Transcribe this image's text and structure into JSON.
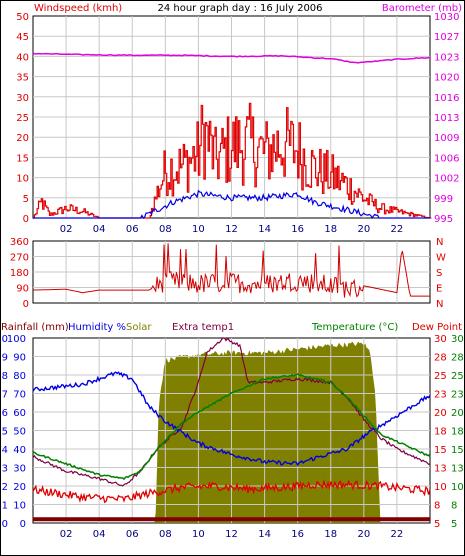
{
  "title": "24 hour graph day : 16 July 2006",
  "colors": {
    "wind": "#e00000",
    "gust": "#e00000",
    "avgwind": "#0000e0",
    "baro": "#e000e0",
    "dir": "#d00000",
    "humidity": "#0000e0",
    "solar": "#808000",
    "extra": "#800040",
    "temp": "#008000",
    "dew": "#e00000",
    "rain": "#800000",
    "dark": "#000000"
  },
  "chart_data": [
    {
      "type": "line",
      "name": "wind-baro",
      "labels": {
        "left": "Windspeed (kmh)",
        "right": "Barometer (mb)"
      },
      "x_ticks": [
        "02",
        "04",
        "06",
        "08",
        "10",
        "12",
        "14",
        "16",
        "18",
        "20",
        "22"
      ],
      "y_left_ticks": [
        "0",
        "5",
        "10",
        "15",
        "20",
        "25",
        "30",
        "35",
        "40",
        "45",
        "50"
      ],
      "y_right_ticks": [
        "995",
        "999",
        "1002",
        "1006",
        "1009",
        "1013",
        "1016",
        "1020",
        "1023",
        "1027",
        "1030"
      ],
      "ylim_left": [
        0,
        50
      ],
      "ylim_right": [
        995,
        1030
      ],
      "xlim": [
        0,
        24
      ],
      "series": {
        "barometer": [
          [
            0,
            1023.5
          ],
          [
            3,
            1023.3
          ],
          [
            6,
            1023.2
          ],
          [
            9,
            1023.2
          ],
          [
            12,
            1023.0
          ],
          [
            15,
            1023.1
          ],
          [
            18,
            1022.6
          ],
          [
            19.5,
            1021.9
          ],
          [
            20.5,
            1022.1
          ],
          [
            22,
            1022.5
          ],
          [
            24,
            1022.8
          ]
        ],
        "gust": [
          [
            0,
            0
          ],
          [
            0.5,
            5
          ],
          [
            1,
            1
          ],
          [
            2,
            3
          ],
          [
            3,
            2
          ],
          [
            4,
            0
          ],
          [
            7,
            0
          ],
          [
            7.5,
            8
          ],
          [
            8,
            15
          ],
          [
            9,
            16
          ],
          [
            10,
            20
          ],
          [
            10.3,
            27
          ],
          [
            11,
            18
          ],
          [
            12,
            22
          ],
          [
            13,
            23
          ],
          [
            14,
            20
          ],
          [
            15,
            23
          ],
          [
            16,
            21
          ],
          [
            17,
            15
          ],
          [
            18,
            13
          ],
          [
            19,
            10
          ],
          [
            20,
            6
          ],
          [
            21,
            3
          ],
          [
            22,
            2
          ],
          [
            23,
            1
          ],
          [
            24,
            0
          ]
        ],
        "average": [
          [
            0,
            0
          ],
          [
            6.5,
            0
          ],
          [
            7.5,
            2
          ],
          [
            8.5,
            4
          ],
          [
            10,
            6
          ],
          [
            12,
            5
          ],
          [
            14,
            5
          ],
          [
            16,
            6
          ],
          [
            17,
            4
          ],
          [
            18,
            3
          ],
          [
            19,
            2
          ],
          [
            20,
            1
          ],
          [
            21,
            0
          ],
          [
            24,
            0
          ]
        ]
      }
    },
    {
      "type": "line",
      "name": "wind-direction",
      "y_left_ticks": [
        "0",
        "90",
        "180",
        "270",
        "360"
      ],
      "y_right_ticks": [
        "N",
        "E",
        "S",
        "W",
        "N"
      ],
      "ylim": [
        0,
        360
      ],
      "series": {
        "direction": [
          [
            0,
            75
          ],
          [
            2,
            80
          ],
          [
            3,
            60
          ],
          [
            4,
            75
          ],
          [
            7,
            75
          ],
          [
            7.5,
            100
          ],
          [
            8,
            130
          ],
          [
            10,
            110
          ],
          [
            12,
            120
          ],
          [
            14,
            110
          ],
          [
            16,
            130
          ],
          [
            18,
            100
          ],
          [
            19.5,
            80
          ],
          [
            20,
            100
          ],
          [
            22,
            60
          ],
          [
            22.3,
            320
          ],
          [
            22.8,
            40
          ],
          [
            24,
            40
          ]
        ]
      }
    },
    {
      "type": "line",
      "name": "temp-humidity",
      "labels": {
        "rain": "Rainfall (mm)",
        "humidity": "Humidity %",
        "solar": "Solar",
        "extra": "Extra temp1",
        "temp": "Temperature (°C)",
        "dew": "Dew Point"
      },
      "y_ticks_rain": [
        "0",
        "1",
        "2",
        "3",
        "4",
        "5",
        "6",
        "7",
        "8",
        "9",
        "10"
      ],
      "y_ticks_hum": [
        "0",
        "10",
        "20",
        "30",
        "40",
        "50",
        "60",
        "70",
        "80",
        "90",
        "100"
      ],
      "y_ticks_extra": [
        "5",
        "8",
        "10",
        "13",
        "15",
        "18",
        "20",
        "23",
        "25",
        "28",
        "30"
      ],
      "y_ticks_right": [
        "5",
        "8",
        "10",
        "13",
        "15",
        "18",
        "20",
        "23",
        "25",
        "28",
        "30"
      ],
      "ylim_temp": [
        5,
        30
      ],
      "series": {
        "humidity": [
          [
            0,
            72
          ],
          [
            3,
            75
          ],
          [
            5,
            81
          ],
          [
            6,
            78
          ],
          [
            7,
            63
          ],
          [
            8,
            55
          ],
          [
            10,
            43
          ],
          [
            12,
            37
          ],
          [
            14,
            33
          ],
          [
            16,
            32
          ],
          [
            17,
            35
          ],
          [
            19,
            40
          ],
          [
            20,
            47
          ],
          [
            22,
            58
          ],
          [
            24,
            69
          ]
        ],
        "temperature": [
          [
            0,
            14.5
          ],
          [
            2,
            13
          ],
          [
            4,
            11.5
          ],
          [
            5.5,
            11
          ],
          [
            6.5,
            12
          ],
          [
            7.5,
            15
          ],
          [
            9,
            18.5
          ],
          [
            10,
            20
          ],
          [
            12,
            22.5
          ],
          [
            14,
            24.5
          ],
          [
            16,
            25
          ],
          [
            18,
            24
          ],
          [
            19,
            22
          ],
          [
            20,
            19.5
          ],
          [
            21,
            17
          ],
          [
            22,
            16
          ],
          [
            24,
            14
          ]
        ],
        "extra_temp": [
          [
            0,
            14
          ],
          [
            2,
            12
          ],
          [
            4,
            11
          ],
          [
            5.5,
            10
          ],
          [
            6.5,
            12
          ],
          [
            7.5,
            15
          ],
          [
            9,
            18
          ],
          [
            10,
            24
          ],
          [
            10.5,
            28
          ],
          [
            11.5,
            30
          ],
          [
            12.5,
            29
          ],
          [
            13,
            24
          ],
          [
            14,
            24
          ],
          [
            16,
            24.5
          ],
          [
            18,
            24
          ],
          [
            19,
            22
          ],
          [
            20,
            19
          ],
          [
            21,
            16.5
          ],
          [
            22,
            15
          ],
          [
            24,
            13
          ]
        ],
        "dewpoint": [
          [
            0,
            9.5
          ],
          [
            3,
            8.5
          ],
          [
            5.5,
            8.2
          ],
          [
            7,
            9
          ],
          [
            9,
            9.8
          ],
          [
            11,
            10
          ],
          [
            13,
            9.6
          ],
          [
            15,
            9.8
          ],
          [
            17,
            10.2
          ],
          [
            19,
            10.2
          ],
          [
            21,
            10
          ],
          [
            24,
            9.3
          ]
        ],
        "solar_pct": [
          [
            0,
            0
          ],
          [
            7.4,
            0
          ],
          [
            7.6,
            65
          ],
          [
            8,
            88
          ],
          [
            10,
            91
          ],
          [
            12,
            92
          ],
          [
            14,
            92
          ],
          [
            16,
            94
          ],
          [
            18,
            96
          ],
          [
            20,
            97
          ],
          [
            20.4,
            92
          ],
          [
            20.7,
            70
          ],
          [
            21,
            0
          ],
          [
            24,
            0
          ]
        ],
        "rain_pct": 1.5
      }
    }
  ]
}
